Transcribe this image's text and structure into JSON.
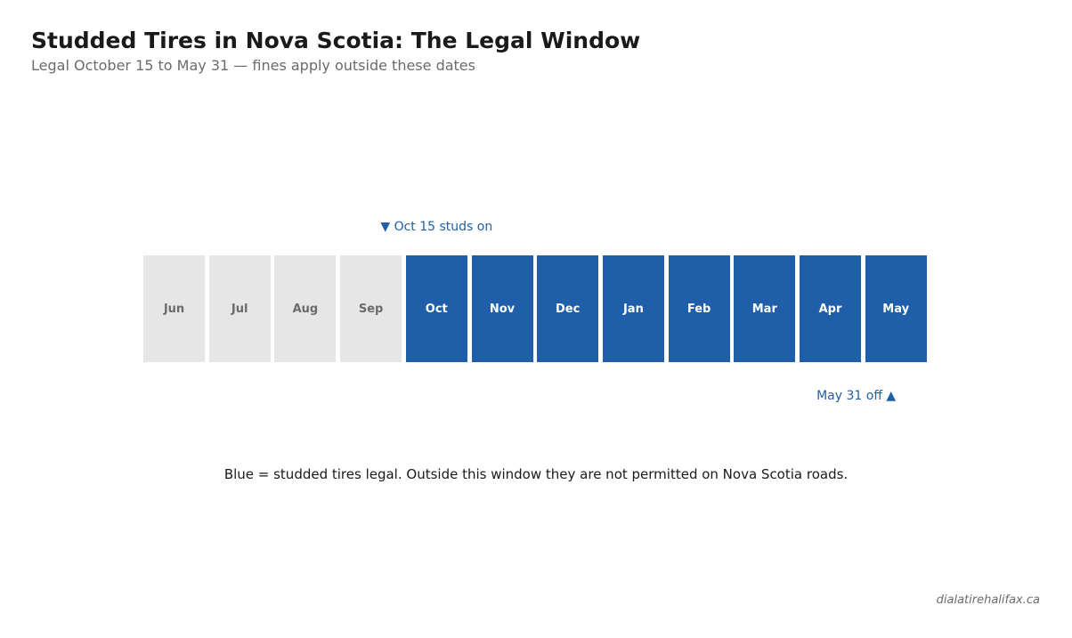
{
  "title": "Studded Tires in Nova Scotia: The Legal Window",
  "subtitle": "Legal October 15 to May 31 — fines apply outside these dates",
  "note": "Blue = studded tires legal. Outside this window they are not permitted on Nova Scotia roads.",
  "source": "dialatirehalifax.ca",
  "colors": {
    "legal": "#1f5faa",
    "not_legal": "#e6e6e6",
    "legal_text": "#ffffff",
    "not_legal_text": "#6b6b6b"
  },
  "chart_data": {
    "type": "heatmap",
    "categories": [
      "Jun",
      "Jul",
      "Aug",
      "Sep",
      "Oct",
      "Nov",
      "Dec",
      "Jan",
      "Feb",
      "Mar",
      "Apr",
      "May"
    ],
    "legal": [
      false,
      false,
      false,
      false,
      true,
      true,
      true,
      true,
      true,
      true,
      true,
      true
    ],
    "annotations": {
      "start": {
        "text": "▼ Oct 15 studs on",
        "month": "Oct",
        "day": 15
      },
      "end": {
        "text": "May 31 off ▲",
        "month": "May",
        "day": 31
      }
    }
  }
}
